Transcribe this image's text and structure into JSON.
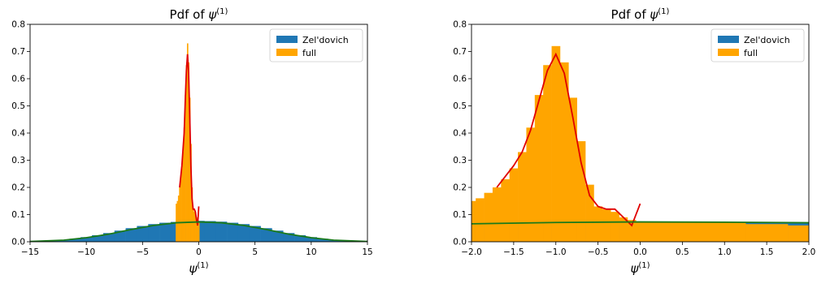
{
  "chart_data": [
    {
      "type": "histogram",
      "title": "Pdf of ψ(1)",
      "title_base": "Pdf of ψ",
      "title_sup": "(1)",
      "xlabel": "ψ(1)",
      "xlabel_base": "ψ",
      "xlabel_sup": "(1)",
      "xlim": [
        -15,
        15
      ],
      "ylim": [
        0,
        0.8
      ],
      "xticks": [
        -15,
        -10,
        -5,
        0,
        5,
        10,
        15
      ],
      "yticks": [
        0.0,
        0.1,
        0.2,
        0.3,
        0.4,
        0.5,
        0.6,
        0.7,
        0.8
      ],
      "xtick_labels": [
        "−15",
        "−10",
        "−5",
        "0",
        "5",
        "10",
        "15"
      ],
      "ytick_labels": [
        "0.0",
        "0.1",
        "0.2",
        "0.3",
        "0.4",
        "0.5",
        "0.6",
        "0.7",
        "0.8"
      ],
      "legend_position": "top-right",
      "series": [
        {
          "name": "Zel'dovich",
          "kind": "histogram",
          "color": "#1f77b4",
          "x": [
            -15,
            -14,
            -13,
            -12,
            -11,
            -10,
            -9,
            -8,
            -7,
            -6,
            -5,
            -4,
            -3,
            -2,
            -1,
            0,
            1,
            2,
            3,
            4,
            5,
            6,
            7,
            8,
            9,
            10,
            11,
            12,
            13,
            14,
            15
          ],
          "y": [
            0.001,
            0.002,
            0.004,
            0.007,
            0.011,
            0.017,
            0.024,
            0.032,
            0.041,
            0.05,
            0.058,
            0.065,
            0.07,
            0.073,
            0.075,
            0.077,
            0.076,
            0.074,
            0.07,
            0.065,
            0.058,
            0.05,
            0.041,
            0.032,
            0.024,
            0.017,
            0.011,
            0.007,
            0.004,
            0.002,
            0.001
          ]
        },
        {
          "name": "full",
          "kind": "histogram",
          "color": "#ffa500",
          "x": [
            -2.0,
            -1.9,
            -1.8,
            -1.7,
            -1.6,
            -1.5,
            -1.4,
            -1.3,
            -1.2,
            -1.1,
            -1.0,
            -0.9,
            -0.8,
            -0.7,
            -0.6,
            -0.5,
            -0.4,
            -0.3,
            -0.2,
            -0.1,
            0.0
          ],
          "y": [
            0.14,
            0.15,
            0.17,
            0.2,
            0.23,
            0.27,
            0.33,
            0.42,
            0.54,
            0.65,
            0.73,
            0.66,
            0.53,
            0.36,
            0.2,
            0.12,
            0.11,
            0.1,
            0.09,
            0.08,
            0.07
          ]
        },
        {
          "name": "",
          "kind": "line",
          "color": "#e00000",
          "x": [
            -1.7,
            -1.5,
            -1.3,
            -1.2,
            -1.1,
            -1.0,
            -0.9,
            -0.8,
            -0.7,
            -0.6,
            -0.5,
            -0.4,
            -0.3,
            -0.2,
            -0.1,
            0.0
          ],
          "y": [
            0.2,
            0.28,
            0.4,
            0.52,
            0.63,
            0.69,
            0.62,
            0.46,
            0.28,
            0.16,
            0.12,
            0.12,
            0.11,
            0.08,
            0.06,
            0.13
          ]
        },
        {
          "name": "",
          "kind": "line",
          "color": "#1a7a1a",
          "x": [
            -15,
            -12,
            -10,
            -8,
            -6,
            -4,
            -2,
            0,
            2,
            4,
            6,
            8,
            10,
            12,
            15
          ],
          "y": [
            0.001,
            0.006,
            0.015,
            0.028,
            0.045,
            0.06,
            0.07,
            0.073,
            0.07,
            0.06,
            0.045,
            0.028,
            0.015,
            0.006,
            0.001
          ]
        }
      ]
    },
    {
      "type": "histogram",
      "title": "Pdf of ψ(1)",
      "title_base": "Pdf of ψ",
      "title_sup": "(1)",
      "xlabel": "ψ(1)",
      "xlabel_base": "ψ",
      "xlabel_sup": "(1)",
      "xlim": [
        -2.0,
        2.0
      ],
      "ylim": [
        0,
        0.8
      ],
      "xticks": [
        -2.0,
        -1.5,
        -1.0,
        -0.5,
        0.0,
        0.5,
        1.0,
        1.5,
        2.0
      ],
      "yticks": [
        0.0,
        0.1,
        0.2,
        0.3,
        0.4,
        0.5,
        0.6,
        0.7,
        0.8
      ],
      "xtick_labels": [
        "−2.0",
        "−1.5",
        "−1.0",
        "−0.5",
        "0.0",
        "0.5",
        "1.0",
        "1.5",
        "2.0"
      ],
      "ytick_labels": [
        "0.0",
        "0.1",
        "0.2",
        "0.3",
        "0.4",
        "0.5",
        "0.6",
        "0.7",
        "0.8"
      ],
      "legend_position": "top-right",
      "series": [
        {
          "name": "Zel'dovich",
          "kind": "histogram",
          "color": "#1f77b4",
          "x": [
            -2.0,
            -1.5,
            -1.0,
            -0.5,
            0.0,
            0.5,
            1.0,
            1.5,
            2.0
          ],
          "y": [
            0.068,
            0.07,
            0.071,
            0.072,
            0.072,
            0.072,
            0.071,
            0.07,
            0.069
          ]
        },
        {
          "name": "full",
          "kind": "histogram",
          "color": "#ffa500",
          "x": [
            -2.0,
            -1.9,
            -1.8,
            -1.7,
            -1.6,
            -1.5,
            -1.4,
            -1.3,
            -1.2,
            -1.1,
            -1.0,
            -0.9,
            -0.8,
            -0.7,
            -0.6,
            -0.5,
            -0.4,
            -0.3,
            -0.2,
            -0.1,
            0.0,
            0.5,
            1.0,
            1.5,
            2.0
          ],
          "y": [
            0.15,
            0.16,
            0.18,
            0.2,
            0.23,
            0.27,
            0.33,
            0.42,
            0.54,
            0.65,
            0.72,
            0.66,
            0.53,
            0.37,
            0.21,
            0.13,
            0.12,
            0.11,
            0.09,
            0.08,
            0.07,
            0.07,
            0.07,
            0.065,
            0.06
          ]
        },
        {
          "name": "",
          "kind": "line",
          "color": "#e00000",
          "x": [
            -1.7,
            -1.6,
            -1.5,
            -1.4,
            -1.3,
            -1.2,
            -1.1,
            -1.0,
            -0.9,
            -0.8,
            -0.7,
            -0.6,
            -0.5,
            -0.4,
            -0.3,
            -0.2,
            -0.1,
            0.0
          ],
          "y": [
            0.2,
            0.24,
            0.28,
            0.33,
            0.41,
            0.52,
            0.63,
            0.69,
            0.62,
            0.46,
            0.29,
            0.17,
            0.13,
            0.12,
            0.12,
            0.09,
            0.06,
            0.14
          ]
        },
        {
          "name": "",
          "kind": "line",
          "color": "#1a7a1a",
          "x": [
            -2.0,
            -1.0,
            0.0,
            1.0,
            2.0
          ],
          "y": [
            0.066,
            0.071,
            0.073,
            0.072,
            0.07
          ]
        }
      ]
    }
  ]
}
